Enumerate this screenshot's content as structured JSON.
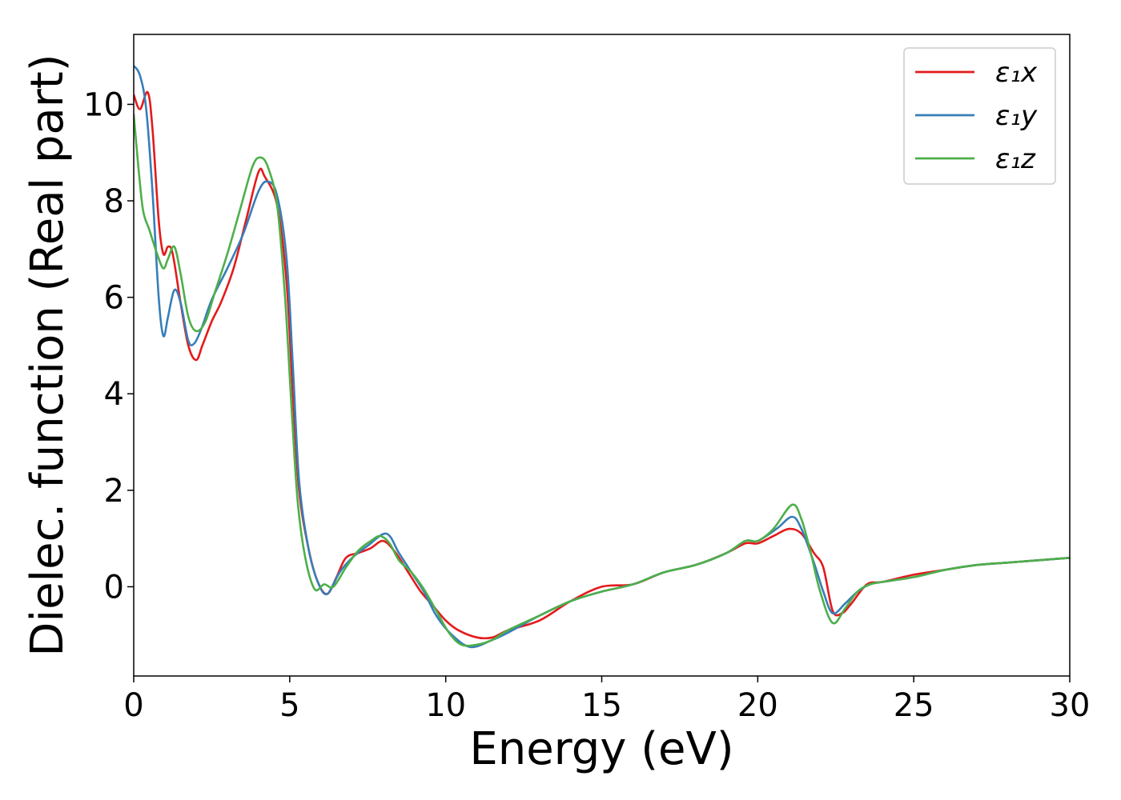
{
  "chart_data": {
    "type": "line",
    "title": "",
    "xlabel": "Energy (eV)",
    "ylabel": "Dielec. function (Real part)",
    "xlim": [
      0,
      30
    ],
    "ylim": [
      -1.85,
      11.45
    ],
    "xticks": [
      0,
      5,
      10,
      15,
      20,
      25,
      30
    ],
    "yticks": [
      0,
      2,
      4,
      6,
      8,
      10
    ],
    "grid": false,
    "legend_position": "top-right",
    "series": [
      {
        "name": "ε₁x",
        "color": "#e41a1c",
        "points": [
          [
            0,
            10.2
          ],
          [
            0.2,
            9.9
          ],
          [
            0.45,
            10.25
          ],
          [
            0.6,
            9.5
          ],
          [
            0.8,
            7.6
          ],
          [
            0.95,
            6.9
          ],
          [
            1.1,
            7.05
          ],
          [
            1.25,
            6.9
          ],
          [
            1.5,
            5.9
          ],
          [
            1.75,
            5.0
          ],
          [
            2.0,
            4.7
          ],
          [
            2.2,
            5.0
          ],
          [
            2.5,
            5.5
          ],
          [
            2.8,
            5.9
          ],
          [
            3.2,
            6.6
          ],
          [
            3.6,
            7.6
          ],
          [
            4.0,
            8.6
          ],
          [
            4.2,
            8.5
          ],
          [
            4.6,
            7.9
          ],
          [
            4.9,
            6.3
          ],
          [
            5.1,
            4.0
          ],
          [
            5.3,
            2.0
          ],
          [
            5.6,
            0.8
          ],
          [
            5.9,
            0.1
          ],
          [
            6.2,
            -0.15
          ],
          [
            6.5,
            0.2
          ],
          [
            6.8,
            0.6
          ],
          [
            7.2,
            0.7
          ],
          [
            7.6,
            0.8
          ],
          [
            8.0,
            0.95
          ],
          [
            8.4,
            0.7
          ],
          [
            8.8,
            0.3
          ],
          [
            9.2,
            -0.1
          ],
          [
            9.6,
            -0.4
          ],
          [
            10.0,
            -0.7
          ],
          [
            10.4,
            -0.9
          ],
          [
            11.0,
            -1.05
          ],
          [
            11.5,
            -1.05
          ],
          [
            12.0,
            -0.9
          ],
          [
            13.0,
            -0.7
          ],
          [
            14.0,
            -0.3
          ],
          [
            15.0,
            0.0
          ],
          [
            16.0,
            0.05
          ],
          [
            17.0,
            0.3
          ],
          [
            18.0,
            0.45
          ],
          [
            19.0,
            0.7
          ],
          [
            19.6,
            0.9
          ],
          [
            20.0,
            0.9
          ],
          [
            20.5,
            1.05
          ],
          [
            21.0,
            1.2
          ],
          [
            21.4,
            1.1
          ],
          [
            21.8,
            0.7
          ],
          [
            22.1,
            0.4
          ],
          [
            22.4,
            -0.5
          ],
          [
            22.7,
            -0.55
          ],
          [
            23.0,
            -0.35
          ],
          [
            23.5,
            0.05
          ],
          [
            24.0,
            0.1
          ],
          [
            25.0,
            0.25
          ],
          [
            26.0,
            0.35
          ],
          [
            27.0,
            0.45
          ],
          [
            28.0,
            0.5
          ],
          [
            29.0,
            0.55
          ],
          [
            30.0,
            0.6
          ]
        ]
      },
      {
        "name": "ε₁y",
        "color": "#377eb8",
        "points": [
          [
            0,
            10.8
          ],
          [
            0.2,
            10.6
          ],
          [
            0.4,
            9.9
          ],
          [
            0.6,
            8.2
          ],
          [
            0.8,
            6.0
          ],
          [
            0.95,
            5.2
          ],
          [
            1.1,
            5.6
          ],
          [
            1.3,
            6.15
          ],
          [
            1.5,
            5.9
          ],
          [
            1.75,
            5.1
          ],
          [
            1.95,
            5.05
          ],
          [
            2.2,
            5.4
          ],
          [
            2.5,
            5.95
          ],
          [
            3.0,
            6.6
          ],
          [
            3.5,
            7.3
          ],
          [
            4.0,
            8.2
          ],
          [
            4.3,
            8.4
          ],
          [
            4.6,
            8.1
          ],
          [
            4.9,
            6.8
          ],
          [
            5.1,
            4.6
          ],
          [
            5.3,
            2.2
          ],
          [
            5.6,
            0.8
          ],
          [
            5.9,
            0.1
          ],
          [
            6.2,
            -0.15
          ],
          [
            6.6,
            0.3
          ],
          [
            7.0,
            0.6
          ],
          [
            7.5,
            0.85
          ],
          [
            8.1,
            1.1
          ],
          [
            8.5,
            0.7
          ],
          [
            8.9,
            0.3
          ],
          [
            9.3,
            -0.1
          ],
          [
            9.7,
            -0.6
          ],
          [
            10.2,
            -1.0
          ],
          [
            10.8,
            -1.25
          ],
          [
            11.5,
            -1.1
          ],
          [
            12.0,
            -0.95
          ],
          [
            13.0,
            -0.6
          ],
          [
            14.0,
            -0.3
          ],
          [
            15.0,
            -0.1
          ],
          [
            16.0,
            0.05
          ],
          [
            17.0,
            0.3
          ],
          [
            18.0,
            0.45
          ],
          [
            19.0,
            0.7
          ],
          [
            19.6,
            0.95
          ],
          [
            20.0,
            0.95
          ],
          [
            20.6,
            1.2
          ],
          [
            21.1,
            1.45
          ],
          [
            21.4,
            1.2
          ],
          [
            21.8,
            0.5
          ],
          [
            22.1,
            -0.1
          ],
          [
            22.4,
            -0.55
          ],
          [
            22.8,
            -0.35
          ],
          [
            23.2,
            -0.1
          ],
          [
            23.6,
            0.05
          ],
          [
            24.0,
            0.1
          ],
          [
            25.0,
            0.2
          ],
          [
            26.0,
            0.35
          ],
          [
            27.0,
            0.45
          ],
          [
            28.0,
            0.5
          ],
          [
            29.0,
            0.55
          ],
          [
            30.0,
            0.6
          ]
        ]
      },
      {
        "name": "ε₁z",
        "color": "#4daf4a",
        "points": [
          [
            0,
            9.8
          ],
          [
            0.15,
            8.7
          ],
          [
            0.3,
            7.8
          ],
          [
            0.5,
            7.4
          ],
          [
            0.75,
            6.9
          ],
          [
            0.95,
            6.6
          ],
          [
            1.1,
            6.8
          ],
          [
            1.3,
            7.05
          ],
          [
            1.5,
            6.5
          ],
          [
            1.75,
            5.6
          ],
          [
            2.0,
            5.3
          ],
          [
            2.3,
            5.5
          ],
          [
            2.6,
            6.1
          ],
          [
            3.0,
            6.9
          ],
          [
            3.4,
            7.8
          ],
          [
            3.8,
            8.7
          ],
          [
            4.05,
            8.9
          ],
          [
            4.3,
            8.7
          ],
          [
            4.6,
            7.9
          ],
          [
            4.85,
            6.0
          ],
          [
            5.05,
            3.8
          ],
          [
            5.25,
            1.8
          ],
          [
            5.5,
            0.6
          ],
          [
            5.8,
            -0.05
          ],
          [
            6.1,
            0.05
          ],
          [
            6.4,
            0.0
          ],
          [
            6.8,
            0.4
          ],
          [
            7.2,
            0.75
          ],
          [
            7.6,
            0.95
          ],
          [
            7.9,
            1.05
          ],
          [
            8.2,
            0.9
          ],
          [
            8.5,
            0.55
          ],
          [
            8.9,
            0.3
          ],
          [
            9.3,
            -0.05
          ],
          [
            9.7,
            -0.5
          ],
          [
            10.1,
            -0.95
          ],
          [
            10.5,
            -1.2
          ],
          [
            11.0,
            -1.2
          ],
          [
            11.5,
            -1.1
          ],
          [
            12.0,
            -0.9
          ],
          [
            13.0,
            -0.6
          ],
          [
            14.0,
            -0.3
          ],
          [
            15.0,
            -0.1
          ],
          [
            16.0,
            0.05
          ],
          [
            17.0,
            0.3
          ],
          [
            18.0,
            0.45
          ],
          [
            19.0,
            0.7
          ],
          [
            19.6,
            0.95
          ],
          [
            20.0,
            0.95
          ],
          [
            20.5,
            1.2
          ],
          [
            21.1,
            1.7
          ],
          [
            21.4,
            1.4
          ],
          [
            21.7,
            0.7
          ],
          [
            22.0,
            -0.1
          ],
          [
            22.4,
            -0.75
          ],
          [
            22.8,
            -0.45
          ],
          [
            23.2,
            -0.1
          ],
          [
            23.6,
            0.05
          ],
          [
            24.0,
            0.1
          ],
          [
            25.0,
            0.2
          ],
          [
            26.0,
            0.35
          ],
          [
            27.0,
            0.45
          ],
          [
            28.0,
            0.5
          ],
          [
            29.0,
            0.55
          ],
          [
            30.0,
            0.6
          ]
        ]
      }
    ]
  }
}
